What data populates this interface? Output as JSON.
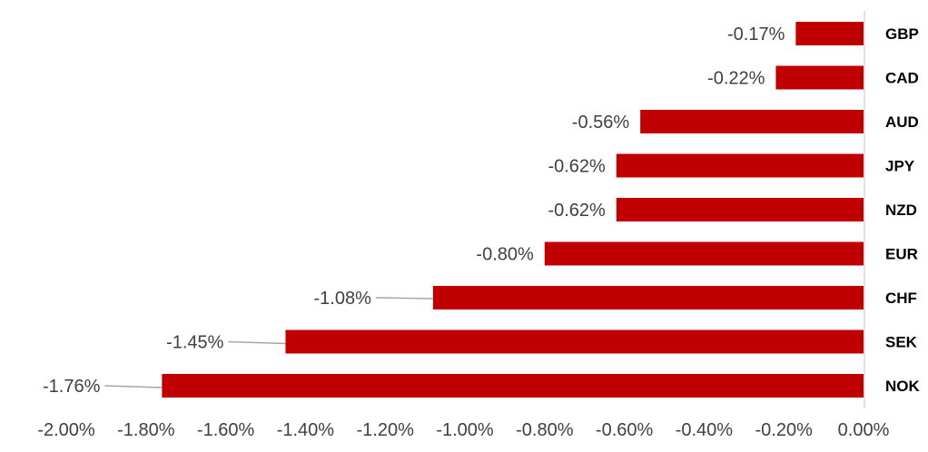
{
  "chart_data": {
    "type": "bar",
    "orientation": "horizontal",
    "categories": [
      "GBP",
      "CAD",
      "AUD",
      "JPY",
      "NZD",
      "EUR",
      "CHF",
      "SEK",
      "NOK"
    ],
    "values": [
      -0.17,
      -0.22,
      -0.56,
      -0.62,
      -0.62,
      -0.8,
      -1.08,
      -1.45,
      -1.76
    ],
    "data_labels": [
      "-0.17%",
      "-0.22%",
      "-0.56%",
      "-0.62%",
      "-0.62%",
      "-0.80%",
      "-1.08%",
      "-1.45%",
      "-1.76%"
    ],
    "x_ticks": [
      -2.0,
      -1.8,
      -1.6,
      -1.4,
      -1.2,
      -1.0,
      -0.8,
      -0.6,
      -0.4,
      -0.2,
      0.0
    ],
    "x_tick_labels": [
      "-2.00%",
      "-1.80%",
      "-1.60%",
      "-1.40%",
      "-1.20%",
      "-1.00%",
      "-0.80%",
      "-0.60%",
      "-0.40%",
      "-0.20%",
      "0.00%"
    ],
    "xlim": [
      -2.0,
      0.0
    ],
    "title": "",
    "xlabel": "",
    "ylabel": "",
    "grid": false,
    "legend": "none",
    "colors": {
      "bar": "#C00000",
      "axis": "#D9D9D9",
      "leader": "#A6A6A6"
    }
  }
}
